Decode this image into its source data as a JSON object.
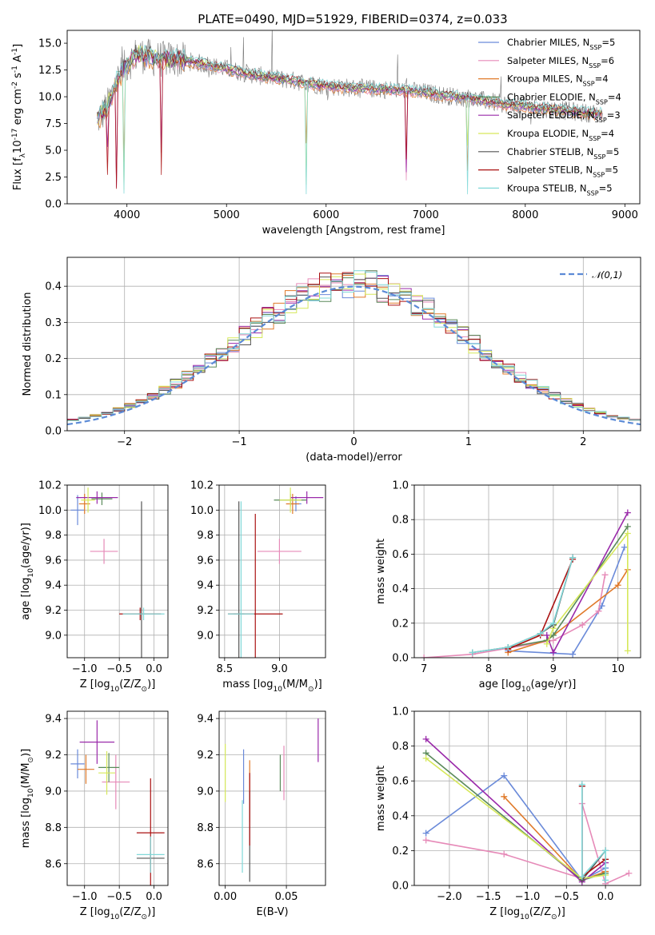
{
  "title": "PLATE=0490, MJD=51929, FIBERID=0374, z=0.033",
  "colors": [
    "#6a8ad9",
    "#e68ab8",
    "#e07a2a",
    "#5a8a5a",
    "#9a2aaa",
    "#d6e85a",
    "#555555",
    "#aa1111",
    "#80d8d8"
  ],
  "legend": [
    "Chabrier MILES, N$_{SSP}$=5",
    "Salpeter MILES, N$_{SSP}$=6",
    "Kroupa MILES, N$_{SSP}$=4",
    "Chabrier ELODIE, N$_{SSP}$=4",
    "Salpeter ELODIE, N$_{SSP}$=3",
    "Kroupa ELODIE, N$_{SSP}$=4",
    "Chabrier STELIB, N$_{SSP}$=5",
    "Salpeter STELIB, N$_{SSP}$=5",
    "Kroupa STELIB, N$_{SSP}$=5"
  ],
  "chart_data": [
    {
      "id": "spectrum",
      "type": "line",
      "xlabel": "wavelength [Angstrom, rest frame]",
      "ylabel": "Flux [f$_\\lambda$10$^{-17}$ erg cm$^{-2}$ s$^{-1}$ A$^{-1}$]",
      "xlim": [
        3400,
        9150
      ],
      "ylim": [
        0,
        16.2
      ],
      "xticks": [
        4000,
        5000,
        6000,
        7000,
        8000,
        9000
      ],
      "yticks": [
        0.0,
        2.5,
        5.0,
        7.5,
        10.0,
        12.5,
        15.0
      ],
      "ytick_labels": [
        "0.0",
        "2.5",
        "5.0",
        "7.5",
        "10.0",
        "12.5",
        "15.0"
      ],
      "grid": false,
      "legend_position": "top-right",
      "data_spectrum_shape": {
        "x": [
          3720,
          3800,
          3900,
          4000,
          4100,
          4300,
          4500,
          4800,
          5000,
          5300,
          5600,
          6000,
          6300,
          6600,
          6800,
          7000,
          7200,
          7400,
          7600,
          7800,
          8000,
          8200,
          8400,
          8600,
          8800
        ],
        "y": [
          8.0,
          9.0,
          11.5,
          13.0,
          14.0,
          13.5,
          13.5,
          13.0,
          12.6,
          12.0,
          11.6,
          11.0,
          10.8,
          10.7,
          10.6,
          10.4,
          10.1,
          9.9,
          9.6,
          9.3,
          9.1,
          8.9,
          8.7,
          8.5,
          8.4
        ]
      }
    },
    {
      "id": "residuals",
      "type": "step",
      "xlabel": "(data-model)/error",
      "ylabel": "Normed distribution",
      "xlim": [
        -2.5,
        2.5
      ],
      "ylim": [
        0,
        0.48
      ],
      "xticks": [
        -2,
        -1,
        0,
        1,
        2
      ],
      "xtick_labels": [
        "−2",
        "−1",
        "0",
        "1",
        "2"
      ],
      "yticks": [
        0.0,
        0.1,
        0.2,
        0.3,
        0.4
      ],
      "ytick_labels": [
        "0.0",
        "0.1",
        "0.2",
        "0.3",
        "0.4"
      ],
      "grid": true,
      "reference_curve": {
        "name": "$\\mathcal{N}(0,1)$",
        "mean": 0,
        "sigma": 1,
        "style": "dashed"
      }
    },
    {
      "id": "age-vs-Z",
      "type": "errorbar",
      "xlabel": "Z [log$_{10}$(Z/Z$_\\odot$)]",
      "ylabel": "age  [log$_{10}$(age/yr)]",
      "xlim": [
        -1.25,
        0.2
      ],
      "ylim": [
        8.82,
        10.2
      ],
      "xticks": [
        -1.0,
        -0.5,
        0.0
      ],
      "xtick_labels": [
        "−1.0",
        "−0.5",
        "0.0"
      ],
      "yticks": [
        9.0,
        9.2,
        9.4,
        9.6,
        9.8,
        10.0,
        10.2
      ],
      "ytick_labels": [
        "9.0",
        "9.2",
        "9.4",
        "9.6",
        "9.8",
        "10.0",
        "10.2"
      ],
      "grid": true,
      "points": [
        {
          "c": 0,
          "x": -1.1,
          "y": 10.0,
          "xerr": 0.1,
          "yerr": 0.12
        },
        {
          "c": 1,
          "x": -0.72,
          "y": 9.67,
          "xerr": 0.2,
          "yerr": 0.1
        },
        {
          "c": 2,
          "x": -1.0,
          "y": 10.05,
          "xerr": 0.08,
          "yerr": 0.08
        },
        {
          "c": 3,
          "x": -0.75,
          "y": 10.09,
          "xerr": 0.15,
          "yerr": 0.05
        },
        {
          "c": 4,
          "x": -0.82,
          "y": 10.1,
          "xerr": 0.3,
          "yerr": 0.05
        },
        {
          "c": 5,
          "x": -0.95,
          "y": 10.08,
          "xerr": 0.1,
          "yerr": 0.1
        },
        {
          "c": 6,
          "x": -0.18,
          "y": 9.17,
          "xerr": 0.05,
          "yerr": 0.9
        },
        {
          "c": 7,
          "x": -0.2,
          "y": 9.17,
          "xerr": 0.3,
          "yerr": 0.05
        },
        {
          "c": 8,
          "x": -0.15,
          "y": 9.17,
          "xerr": 0.3,
          "yerr": 0.05
        }
      ]
    },
    {
      "id": "age-vs-mass",
      "type": "errorbar",
      "xlabel": "mass [log$_{10}$(M/M$_\\odot$)]",
      "ylabel": "",
      "xlim": [
        8.45,
        9.42
      ],
      "ylim": [
        8.82,
        10.2
      ],
      "xticks": [
        8.5,
        9.0
      ],
      "xtick_labels": [
        "8.5",
        "9.0"
      ],
      "yticks": [
        9.0,
        9.2,
        9.4,
        9.6,
        9.8,
        10.0,
        10.2
      ],
      "ytick_labels": [
        "9.0",
        "9.2",
        "9.4",
        "9.6",
        "9.8",
        "10.0",
        "10.2"
      ],
      "grid": true,
      "points": [
        {
          "c": 0,
          "x": 9.15,
          "y": 10.05,
          "xerr": 0.05,
          "yerr": 0.06
        },
        {
          "c": 1,
          "x": 9.0,
          "y": 9.67,
          "xerr": 0.2,
          "yerr": 0.1
        },
        {
          "c": 2,
          "x": 9.12,
          "y": 10.05,
          "xerr": 0.06,
          "yerr": 0.08
        },
        {
          "c": 3,
          "x": 9.1,
          "y": 10.08,
          "xerr": 0.15,
          "yerr": 0.05
        },
        {
          "c": 4,
          "x": 9.25,
          "y": 10.1,
          "xerr": 0.15,
          "yerr": 0.05
        },
        {
          "c": 5,
          "x": 9.1,
          "y": 10.08,
          "xerr": 0.1,
          "yerr": 0.1
        },
        {
          "c": 6,
          "x": 8.63,
          "y": 9.17,
          "xerr": 0.05,
          "yerr": 0.9
        },
        {
          "c": 7,
          "x": 8.78,
          "y": 9.17,
          "xerr": 0.25,
          "yerr": 0.8
        },
        {
          "c": 8,
          "x": 8.65,
          "y": 9.17,
          "xerr": 0.12,
          "yerr": 0.9
        }
      ]
    },
    {
      "id": "massweight-vs-age",
      "type": "line",
      "xlabel": "age  [log$_{10}$(age/yr)]",
      "ylabel": "mass weight",
      "xlim": [
        6.85,
        10.35
      ],
      "ylim": [
        0,
        1.0
      ],
      "xticks": [
        7,
        8,
        9,
        10
      ],
      "xtick_labels": [
        "7",
        "8",
        "9",
        "10"
      ],
      "yticks": [
        0.0,
        0.2,
        0.4,
        0.6,
        0.8,
        1.0
      ],
      "ytick_labels": [
        "0.0",
        "0.2",
        "0.4",
        "0.6",
        "0.8",
        "1.0"
      ],
      "grid": true,
      "series": [
        {
          "c": 0,
          "x": [
            8.3,
            9.3,
            9.75,
            10.1
          ],
          "y": [
            0.04,
            0.02,
            0.3,
            0.64
          ]
        },
        {
          "c": 1,
          "x": [
            7.0,
            7.75,
            9.0,
            9.45,
            9.7,
            9.8
          ],
          "y": [
            0.0,
            0.02,
            0.1,
            0.19,
            0.27,
            0.48
          ]
        },
        {
          "c": 2,
          "x": [
            8.3,
            8.9,
            10.0,
            10.15
          ],
          "y": [
            0.03,
            0.1,
            0.42,
            0.51
          ]
        },
        {
          "c": 3,
          "x": [
            8.3,
            8.9,
            9.0,
            10.15
          ],
          "y": [
            0.06,
            0.1,
            0.13,
            0.76
          ]
        },
        {
          "c": 4,
          "x": [
            8.9,
            9.0,
            10.15
          ],
          "y": [
            0.13,
            0.03,
            0.84
          ]
        },
        {
          "c": 5,
          "x": [
            8.9,
            9.0,
            10.15,
            10.15
          ],
          "y": [
            0.08,
            0.17,
            0.72,
            0.04
          ]
        },
        {
          "c": 6,
          "x": [
            7.75,
            8.3,
            8.8,
            9.0,
            9.3
          ],
          "y": [
            0.03,
            0.06,
            0.14,
            0.19,
            0.58
          ]
        },
        {
          "c": 7,
          "x": [
            8.3,
            8.8,
            9.3
          ],
          "y": [
            0.05,
            0.13,
            0.57
          ]
        },
        {
          "c": 8,
          "x": [
            7.75,
            8.3,
            8.8,
            9.0,
            9.3
          ],
          "y": [
            0.03,
            0.06,
            0.14,
            0.2,
            0.58
          ]
        }
      ]
    },
    {
      "id": "mass-vs-Z",
      "type": "errorbar",
      "xlabel": "Z [log$_{10}$(Z/Z$_\\odot$)]",
      "ylabel": "mass [log$_{10}$(M/M$_\\odot$)]",
      "xlim": [
        -1.25,
        0.2
      ],
      "ylim": [
        8.48,
        9.44
      ],
      "xticks": [
        -1.0,
        -0.5,
        0.0
      ],
      "xtick_labels": [
        "−1.0",
        "−0.5",
        "0.0"
      ],
      "yticks": [
        8.6,
        8.8,
        9.0,
        9.2,
        9.4
      ],
      "ytick_labels": [
        "8.6",
        "8.8",
        "9.0",
        "9.2",
        "9.4"
      ],
      "grid": true,
      "points": [
        {
          "c": 0,
          "x": -1.1,
          "y": 9.15,
          "xerr": 0.1,
          "yerr": 0.08
        },
        {
          "c": 1,
          "x": -0.55,
          "y": 9.05,
          "xerr": 0.2,
          "yerr": 0.15
        },
        {
          "c": 2,
          "x": -0.98,
          "y": 9.12,
          "xerr": 0.12,
          "yerr": 0.08
        },
        {
          "c": 3,
          "x": -0.65,
          "y": 9.13,
          "xerr": 0.15,
          "yerr": 0.08
        },
        {
          "c": 4,
          "x": -0.82,
          "y": 9.27,
          "xerr": 0.25,
          "yerr": 0.12
        },
        {
          "c": 5,
          "x": -0.68,
          "y": 9.1,
          "xerr": 0.12,
          "yerr": 0.12
        },
        {
          "c": 6,
          "x": -0.05,
          "y": 8.63,
          "xerr": 0.2,
          "yerr": 0.03
        },
        {
          "c": 7,
          "x": -0.05,
          "y": 8.77,
          "xerr": 0.2,
          "yerr": 0.3
        },
        {
          "c": 8,
          "x": -0.05,
          "y": 8.65,
          "xerr": 0.2,
          "yerr": 0.1
        }
      ]
    },
    {
      "id": "mass-vs-ebv",
      "type": "errorbar",
      "xlabel": "E(B-V)",
      "ylabel": "",
      "xlim": [
        -0.005,
        0.082
      ],
      "ylim": [
        8.48,
        9.44
      ],
      "xticks": [
        0.0,
        0.05
      ],
      "xtick_labels": [
        "0.00",
        "0.05"
      ],
      "yticks": [
        8.6,
        8.8,
        9.0,
        9.2,
        9.4
      ],
      "ytick_labels": [
        "8.6",
        "8.8",
        "9.0",
        "9.2",
        "9.4"
      ],
      "grid": true,
      "points": [
        {
          "c": 0,
          "x": 0.015,
          "y": 9.08,
          "xerr": 0,
          "yerr": 0.15
        },
        {
          "c": 1,
          "x": 0.048,
          "y": 9.1,
          "xerr": 0,
          "yerr": 0.15
        },
        {
          "c": 2,
          "x": 0.02,
          "y": 9.0,
          "xerr": 0,
          "yerr": 0.17
        },
        {
          "c": 3,
          "x": 0.045,
          "y": 9.1,
          "xerr": 0,
          "yerr": 0.1
        },
        {
          "c": 4,
          "x": 0.076,
          "y": 9.28,
          "xerr": 0,
          "yerr": 0.12
        },
        {
          "c": 5,
          "x": 0.0,
          "y": 9.1,
          "xerr": 0,
          "yerr": 0.16
        },
        {
          "c": 6,
          "x": 0.02,
          "y": 8.75,
          "xerr": 0,
          "yerr": 0.25
        },
        {
          "c": 7,
          "x": 0.02,
          "y": 8.9,
          "xerr": 0,
          "yerr": 0.2
        },
        {
          "c": 8,
          "x": 0.014,
          "y": 8.75,
          "xerr": 0,
          "yerr": 0.2
        }
      ]
    },
    {
      "id": "massweight-vs-Z",
      "type": "line",
      "xlabel": "Z [log$_{10}$(Z/Z$_\\odot$)]",
      "ylabel": "mass weight",
      "xlim": [
        -2.45,
        0.45
      ],
      "ylim": [
        0,
        1.0
      ],
      "xticks": [
        -2.0,
        -1.5,
        -1.0,
        -0.5,
        0.0
      ],
      "xtick_labels": [
        "−2.0",
        "−1.5",
        "−1.0",
        "−0.5",
        "0.0"
      ],
      "yticks": [
        0.0,
        0.2,
        0.4,
        0.6,
        0.8,
        1.0
      ],
      "ytick_labels": [
        "0.0",
        "0.2",
        "0.4",
        "0.6",
        "0.8",
        "1.0"
      ],
      "grid": true,
      "series": [
        {
          "c": 0,
          "x": [
            -2.3,
            -1.3,
            -0.3,
            0.0
          ],
          "y": [
            0.3,
            0.63,
            0.03,
            0.1
          ]
        },
        {
          "c": 1,
          "x": [
            -2.3,
            -1.3,
            -0.3,
            -0.3,
            0.0,
            0.3
          ],
          "y": [
            0.26,
            0.18,
            0.04,
            0.47,
            0.01,
            0.07
          ]
        },
        {
          "c": 2,
          "x": [
            -1.3,
            -0.3,
            0.0
          ],
          "y": [
            0.51,
            0.03,
            0.08
          ]
        },
        {
          "c": 3,
          "x": [
            -2.3,
            -0.3,
            0.0
          ],
          "y": [
            0.76,
            0.03,
            0.07
          ]
        },
        {
          "c": 4,
          "x": [
            -2.3,
            -0.3,
            0.0
          ],
          "y": [
            0.84,
            0.02,
            0.13
          ]
        },
        {
          "c": 5,
          "x": [
            -2.3,
            -0.3,
            0.0
          ],
          "y": [
            0.73,
            0.04,
            0.06
          ]
        },
        {
          "c": 6,
          "x": [
            -0.3,
            -0.3,
            0.0
          ],
          "y": [
            0.57,
            0.03,
            0.2
          ]
        },
        {
          "c": 7,
          "x": [
            -0.3,
            -0.3,
            0.0
          ],
          "y": [
            0.57,
            0.05,
            0.15
          ]
        },
        {
          "c": 8,
          "x": [
            -0.3,
            -0.3,
            0.0,
            0.0
          ],
          "y": [
            0.58,
            0.05,
            0.2,
            0.03
          ]
        }
      ]
    }
  ]
}
